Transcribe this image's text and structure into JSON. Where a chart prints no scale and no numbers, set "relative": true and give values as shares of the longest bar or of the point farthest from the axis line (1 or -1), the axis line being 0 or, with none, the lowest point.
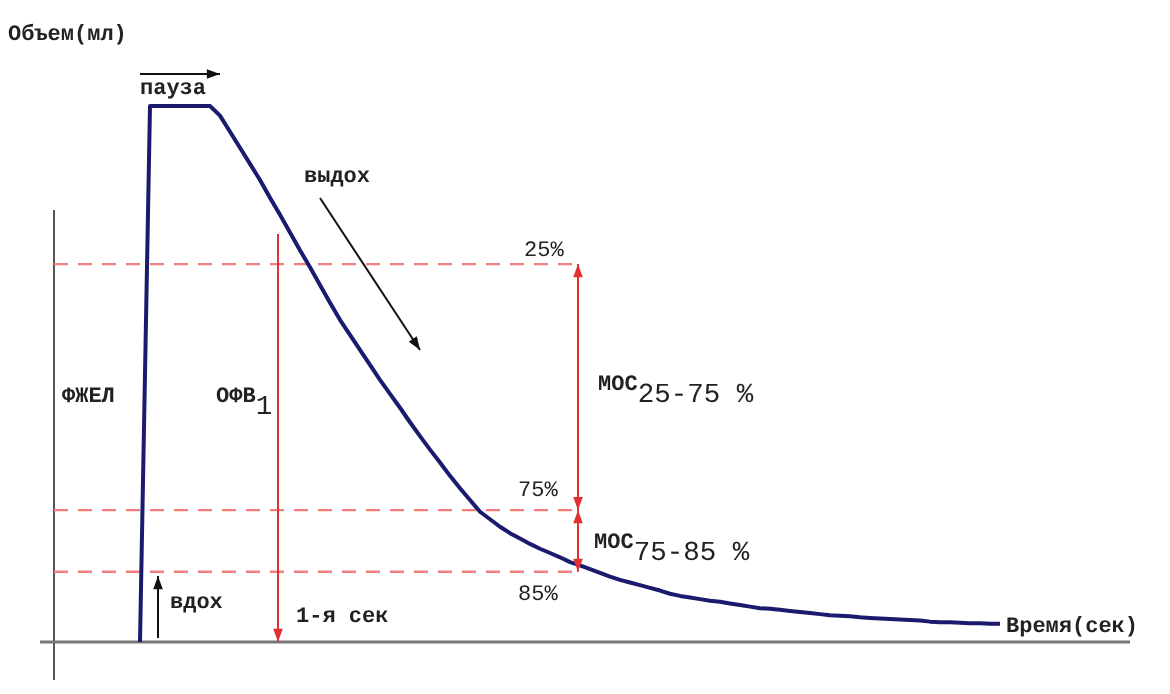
{
  "chart_data": {
    "type": "line",
    "relative": true,
    "xlabel": "Время(сек)",
    "ylabel": "Объем(мл)",
    "categories": [
      null,
      null,
      null,
      null,
      null,
      null,
      null,
      null,
      null,
      null,
      null,
      null,
      null,
      null,
      null,
      null,
      null,
      null,
      null,
      null,
      null,
      null,
      null,
      null,
      null,
      null,
      null,
      null,
      null,
      null,
      null,
      null,
      null,
      null,
      null,
      null,
      null,
      null,
      null,
      null,
      null,
      null,
      null,
      null,
      null,
      null,
      null,
      null,
      null,
      null,
      null,
      null,
      null,
      null,
      null,
      null,
      null,
      null,
      null,
      null,
      null,
      null,
      null,
      null,
      null,
      null,
      null,
      null,
      null,
      null,
      null,
      null,
      null,
      null,
      null,
      null,
      null,
      null,
      null,
      null,
      null,
      null,
      null,
      null,
      null,
      null,
      null
    ],
    "series": [
      {
        "color": "#1a1a6e",
        "values": [
          0,
          1,
          1,
          1,
          1,
          1,
          1,
          1,
          0.982,
          0.952,
          0.922,
          0.892,
          0.862,
          0.829,
          0.797,
          0.764,
          0.731,
          0.699,
          0.666,
          0.633,
          0.601,
          0.573,
          0.545,
          0.517,
          0.489,
          0.463,
          0.437,
          0.41,
          0.384,
          0.359,
          0.335,
          0.31,
          0.287,
          0.265,
          0.243,
          0.229,
          0.215,
          0.203,
          0.193,
          0.183,
          0.174,
          0.166,
          0.158,
          0.149,
          0.143,
          0.136,
          0.129,
          0.122,
          0.116,
          0.111,
          0.106,
          0.101,
          0.096,
          0.09,
          0.086,
          0.083,
          0.08,
          0.077,
          0.075,
          0.072,
          0.069,
          0.066,
          0.063,
          0.062,
          0.06,
          0.058,
          0.056,
          0.054,
          0.052,
          0.05,
          0.049,
          0.048,
          0.046,
          0.045,
          0.044,
          0.043,
          0.042,
          0.041,
          0.04,
          0.038,
          0.037,
          0.037,
          0.036,
          0.035,
          0.035,
          0.034,
          0.034
        ]
      }
    ],
    "ref_lines": [
      {
        "axis": "y",
        "value": 0.705,
        "color": "#f08080",
        "line_style": "dashed"
      },
      {
        "axis": "y",
        "value": 0.246,
        "color": "#f08080",
        "line_style": "dashed"
      },
      {
        "axis": "y",
        "value": 0.131,
        "color": "#f08080",
        "line_style": "dashed"
      }
    ],
    "annotations": [
      "пауза",
      "выдох",
      "вдох",
      "ОФВ$_{1}$",
      "МОС$_{25-75 %}$",
      "МОС$_{75-85 %}$",
      "ФЖЕЛ",
      "1-я сек",
      "25%",
      "75%",
      "85%"
    ]
  }
}
